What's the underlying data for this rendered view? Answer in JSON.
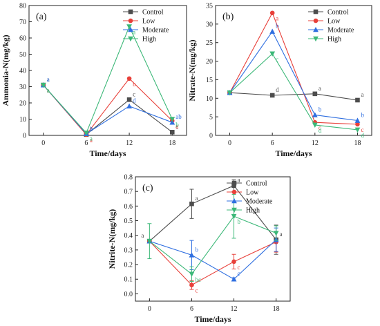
{
  "colors": {
    "Control": "#4d4d4d",
    "Low": "#e8403a",
    "Moderate": "#2f6fe0",
    "High": "#3cb878"
  },
  "chart_data": [
    {
      "type": "line",
      "panel_label": "(a)",
      "xlabel": "Time/days",
      "ylabel": "Ammonia-N(mg/kg)",
      "x": [
        0,
        6,
        12,
        18
      ],
      "xlim": [
        -2,
        20
      ],
      "ylim": [
        0,
        80
      ],
      "yticks": [
        0,
        10,
        20,
        30,
        40,
        50,
        60,
        70,
        80
      ],
      "legend_position": "top-right",
      "series": [
        {
          "name": "Control",
          "marker": "square",
          "values": [
            31,
            0.5,
            22,
            2
          ],
          "labels": [
            "a",
            "b",
            "c",
            "c"
          ]
        },
        {
          "name": "Low",
          "marker": "circle",
          "values": [
            31,
            0.5,
            35,
            9
          ],
          "labels": [
            "a",
            "a",
            "b",
            "a"
          ]
        },
        {
          "name": "Moderate",
          "marker": "triangle-up",
          "values": [
            31,
            1,
            18,
            8
          ],
          "labels": [
            "a",
            "a",
            "d",
            "ab"
          ]
        },
        {
          "name": "High",
          "marker": "triangle-down",
          "values": [
            31,
            1.5,
            67,
            10
          ],
          "labels": [
            "a",
            "a",
            "a",
            "b"
          ]
        }
      ]
    },
    {
      "type": "line",
      "panel_label": "(b)",
      "xlabel": "Time/days",
      "ylabel": "Nitrate-N(mg/kg)",
      "x": [
        0,
        6,
        12,
        18
      ],
      "xlim": [
        -2,
        20
      ],
      "ylim": [
        0,
        35
      ],
      "yticks": [
        0,
        5,
        10,
        15,
        20,
        25,
        30,
        35
      ],
      "legend_position": "top-right",
      "series": [
        {
          "name": "Control",
          "marker": "square",
          "values": [
            11.5,
            10.8,
            11.2,
            9.5
          ],
          "labels": [
            "",
            "d",
            "a",
            "a"
          ]
        },
        {
          "name": "Low",
          "marker": "circle",
          "values": [
            11.5,
            33,
            3.5,
            3
          ],
          "labels": [
            "",
            "a",
            "c",
            "c"
          ]
        },
        {
          "name": "Moderate",
          "marker": "triangle-up",
          "values": [
            11.5,
            28,
            5.5,
            4
          ],
          "labels": [
            "",
            "b",
            "b",
            "b"
          ]
        },
        {
          "name": "High",
          "marker": "triangle-down",
          "values": [
            11.5,
            22,
            2.8,
            1.5
          ],
          "labels": [
            "",
            "c",
            "d",
            "d"
          ]
        }
      ]
    },
    {
      "type": "line",
      "panel_label": "(c)",
      "xlabel": "Time/days",
      "ylabel": "Nitrite-N(mg/kg)",
      "x": [
        0,
        6,
        12,
        18
      ],
      "xlim": [
        -2,
        20
      ],
      "ylim": [
        -0.05,
        0.8
      ],
      "yticks": [
        0.0,
        0.1,
        0.2,
        0.3,
        0.4,
        0.5,
        0.6,
        0.7,
        0.8
      ],
      "legend_position": "top-right",
      "series": [
        {
          "name": "Control",
          "marker": "square",
          "values": [
            0.36,
            0.615,
            0.74,
            0.37
          ],
          "errors": [
            0,
            0.1,
            0.04,
            0.1
          ],
          "labels": [
            "a",
            "a",
            "a",
            "a"
          ]
        },
        {
          "name": "Low",
          "marker": "circle",
          "values": [
            0.36,
            0.06,
            0.22,
            0.355
          ],
          "errors": [
            0,
            0.03,
            0.05,
            0.07
          ],
          "labels": [
            "",
            "c",
            "c",
            ""
          ]
        },
        {
          "name": "Moderate",
          "marker": "triangle-up",
          "values": [
            0.36,
            0.265,
            0.1,
            0.37
          ],
          "errors": [
            0,
            0.1,
            0.01,
            0.08
          ],
          "labels": [
            "",
            "b",
            "c",
            ""
          ]
        },
        {
          "name": "High",
          "marker": "triangle-down",
          "values": [
            0.36,
            0.135,
            0.53,
            0.415
          ],
          "errors": [
            0.12,
            0.05,
            0.15,
            0.05
          ],
          "labels": [
            "",
            "bc",
            "b",
            ""
          ]
        }
      ]
    }
  ]
}
